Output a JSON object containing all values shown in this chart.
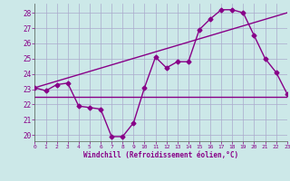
{
  "background_color": "#cce8e8",
  "grid_color": "#aaaacc",
  "line_color": "#880088",
  "xlabel": "Windchill (Refroidissement éolien,°C)",
  "xlim": [
    0,
    23
  ],
  "ylim": [
    19.6,
    28.6
  ],
  "yticks": [
    20,
    21,
    22,
    23,
    24,
    25,
    26,
    27,
    28
  ],
  "xticks": [
    0,
    1,
    2,
    3,
    4,
    5,
    6,
    7,
    8,
    9,
    10,
    11,
    12,
    13,
    14,
    15,
    16,
    17,
    18,
    19,
    20,
    21,
    22,
    23
  ],
  "line1_x": [
    0,
    1,
    2,
    3,
    4,
    5,
    6,
    7,
    8,
    9,
    10,
    11,
    12,
    13,
    14,
    15,
    16,
    17,
    18,
    19,
    20,
    21,
    22,
    23
  ],
  "line1_y": [
    23.1,
    22.9,
    23.3,
    23.4,
    21.9,
    21.8,
    21.7,
    19.9,
    19.9,
    20.8,
    23.1,
    25.1,
    24.4,
    24.8,
    24.8,
    26.9,
    27.6,
    28.2,
    28.2,
    28.0,
    26.5,
    25.0,
    24.1,
    22.7
  ],
  "line2_x": [
    0,
    23
  ],
  "line2_y": [
    23.1,
    28.0
  ],
  "line3_x": [
    0,
    23
  ],
  "line3_y": [
    22.5,
    22.5
  ]
}
